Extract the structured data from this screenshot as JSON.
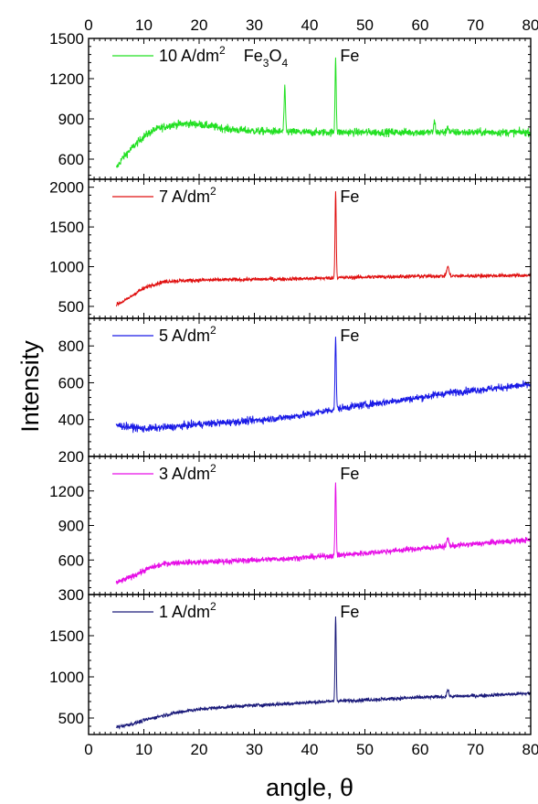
{
  "chart_data": {
    "type": "line",
    "xlabel": "angle, θ",
    "ylabel": "Intensity",
    "xlim": [
      0,
      80
    ],
    "x_ticks": [
      "0",
      "10",
      "20",
      "30",
      "40",
      "50",
      "60",
      "70",
      "80"
    ],
    "x_tick_values": [
      0,
      10,
      20,
      30,
      40,
      50,
      60,
      70,
      80
    ],
    "x_axis_top_labels": true,
    "x_range_data": [
      5,
      80
    ],
    "grid": false,
    "legend_placement": "top-left in each panel",
    "panels": [
      {
        "legend_label": "10 A/dm",
        "legend_sup": "2",
        "color": "#22e022",
        "ylim": [
          450,
          1500
        ],
        "y_ticks": [
          "600",
          "900",
          "1200",
          "1500"
        ],
        "y_tick_values": [
          600,
          900,
          1200,
          1500
        ],
        "peak_labels": [
          {
            "text": "Fe",
            "sub": "3",
            "text2": "O",
            "sub2": "4",
            "x": 35.5
          },
          {
            "text": "Fe",
            "x": 44.7
          }
        ],
        "baseline": [
          [
            5,
            530
          ],
          [
            6,
            600
          ],
          [
            8,
            690
          ],
          [
            10,
            770
          ],
          [
            12,
            820
          ],
          [
            15,
            855
          ],
          [
            18,
            865
          ],
          [
            20,
            860
          ],
          [
            23,
            840
          ],
          [
            26,
            820
          ],
          [
            30,
            810
          ],
          [
            35,
            805
          ],
          [
            40,
            800
          ],
          [
            45,
            800
          ],
          [
            50,
            800
          ],
          [
            55,
            800
          ],
          [
            60,
            800
          ],
          [
            65,
            800
          ],
          [
            70,
            800
          ],
          [
            75,
            800
          ],
          [
            80,
            800
          ]
        ],
        "noise": 26,
        "peaks": [
          {
            "x": 35.5,
            "height": 1120,
            "width": 0.18
          },
          {
            "x": 44.7,
            "height": 1360,
            "width": 0.15
          },
          {
            "x": 62.6,
            "height": 880,
            "width": 0.2
          },
          {
            "x": 65.0,
            "height": 850,
            "width": 0.2
          }
        ]
      },
      {
        "legend_label": "7 A/dm",
        "legend_sup": "2",
        "color": "#e01010",
        "ylim": [
          350,
          2100
        ],
        "y_ticks": [
          "500",
          "1000",
          "1500",
          "2000"
        ],
        "y_tick_values": [
          500,
          1000,
          1500,
          2000
        ],
        "peak_labels": [
          {
            "text": "Fe",
            "x": 44.7
          }
        ],
        "baseline": [
          [
            5,
            520
          ],
          [
            7,
            590
          ],
          [
            9,
            690
          ],
          [
            11,
            760
          ],
          [
            13,
            800
          ],
          [
            15,
            820
          ],
          [
            20,
            830
          ],
          [
            30,
            840
          ],
          [
            40,
            850
          ],
          [
            45,
            860
          ],
          [
            50,
            870
          ],
          [
            60,
            880
          ],
          [
            70,
            885
          ],
          [
            80,
            890
          ]
        ],
        "noise": 22,
        "peaks": [
          {
            "x": 44.7,
            "height": 1950,
            "width": 0.15
          },
          {
            "x": 65.0,
            "height": 1000,
            "width": 0.3
          }
        ]
      },
      {
        "legend_label": "5 A/dm",
        "legend_sup": "2",
        "color": "#1a1ae6",
        "ylim": [
          200,
          950
        ],
        "y_ticks": [
          "200",
          "400",
          "600",
          "800"
        ],
        "y_tick_values": [
          200,
          400,
          600,
          800
        ],
        "peak_labels": [
          {
            "text": "Fe",
            "x": 44.7
          }
        ],
        "baseline": [
          [
            5,
            370
          ],
          [
            10,
            350
          ],
          [
            15,
            360
          ],
          [
            20,
            375
          ],
          [
            25,
            385
          ],
          [
            30,
            395
          ],
          [
            35,
            410
          ],
          [
            40,
            430
          ],
          [
            45,
            460
          ],
          [
            50,
            480
          ],
          [
            55,
            500
          ],
          [
            60,
            520
          ],
          [
            65,
            545
          ],
          [
            70,
            560
          ],
          [
            75,
            575
          ],
          [
            80,
            590
          ]
        ],
        "noise": 18,
        "peaks": [
          {
            "x": 44.7,
            "height": 855,
            "width": 0.15
          }
        ]
      },
      {
        "legend_label": "3 A/dm",
        "legend_sup": "2",
        "color": "#e60ee6",
        "ylim": [
          300,
          1500
        ],
        "y_ticks": [
          "300",
          "600",
          "900",
          "1200"
        ],
        "y_tick_values": [
          300,
          600,
          900,
          1200
        ],
        "peak_labels": [
          {
            "text": "Fe",
            "x": 44.7
          }
        ],
        "baseline": [
          [
            5,
            400
          ],
          [
            8,
            460
          ],
          [
            11,
            530
          ],
          [
            14,
            570
          ],
          [
            17,
            580
          ],
          [
            20,
            580
          ],
          [
            25,
            590
          ],
          [
            30,
            600
          ],
          [
            35,
            610
          ],
          [
            40,
            625
          ],
          [
            45,
            640
          ],
          [
            50,
            660
          ],
          [
            55,
            680
          ],
          [
            60,
            700
          ],
          [
            65,
            720
          ],
          [
            70,
            740
          ],
          [
            75,
            760
          ],
          [
            80,
            775
          ]
        ],
        "noise": 22,
        "peaks": [
          {
            "x": 44.7,
            "height": 1280,
            "width": 0.15
          },
          {
            "x": 65.0,
            "height": 790,
            "width": 0.25
          }
        ]
      },
      {
        "legend_label": "1 A/dm",
        "legend_sup": "2",
        "color": "#1a1a7a",
        "ylim": [
          300,
          2000
        ],
        "y_ticks": [
          "500",
          "1000",
          "1500"
        ],
        "y_tick_values": [
          500,
          1000,
          1500
        ],
        "peak_labels": [
          {
            "text": "Fe",
            "x": 44.7
          }
        ],
        "baseline": [
          [
            5,
            390
          ],
          [
            8,
            430
          ],
          [
            11,
            490
          ],
          [
            14,
            540
          ],
          [
            18,
            590
          ],
          [
            22,
            620
          ],
          [
            26,
            640
          ],
          [
            30,
            655
          ],
          [
            35,
            670
          ],
          [
            40,
            690
          ],
          [
            45,
            705
          ],
          [
            50,
            720
          ],
          [
            55,
            735
          ],
          [
            60,
            750
          ],
          [
            65,
            760
          ],
          [
            70,
            770
          ],
          [
            75,
            785
          ],
          [
            80,
            800
          ]
        ],
        "noise": 20,
        "peaks": [
          {
            "x": 44.7,
            "height": 1740,
            "width": 0.15
          },
          {
            "x": 65.0,
            "height": 840,
            "width": 0.25
          }
        ]
      }
    ]
  }
}
